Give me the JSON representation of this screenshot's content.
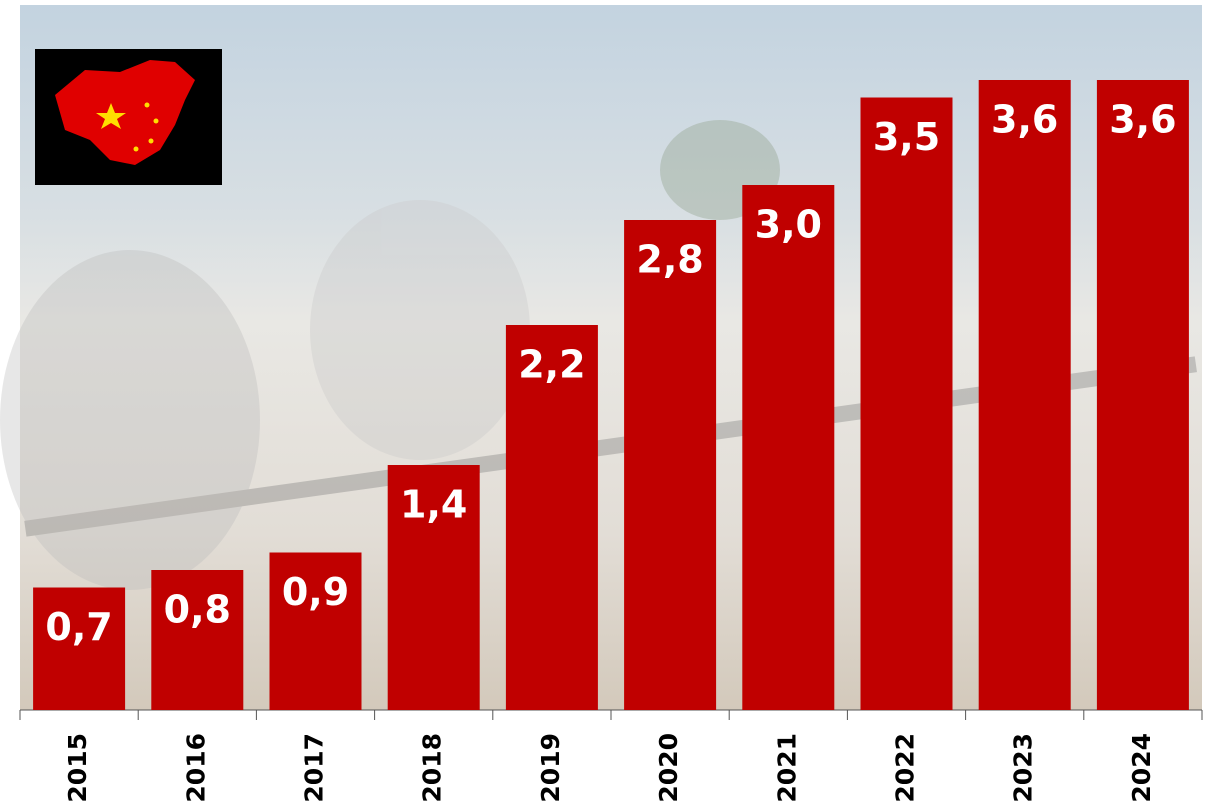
{
  "chart_data": {
    "type": "bar",
    "categories": [
      "2015",
      "2016",
      "2017",
      "2018",
      "2019",
      "2020",
      "2021",
      "2022",
      "2023",
      "2024"
    ],
    "values": [
      0.7,
      0.8,
      0.9,
      1.4,
      2.2,
      2.8,
      3.0,
      3.5,
      3.6,
      3.6
    ],
    "value_labels": [
      "0,7",
      "0,8",
      "0,9",
      "1,4",
      "2,2",
      "2,8",
      "3,0",
      "3,5",
      "3,6",
      "3,6"
    ],
    "color": "#c00000"
  }
}
